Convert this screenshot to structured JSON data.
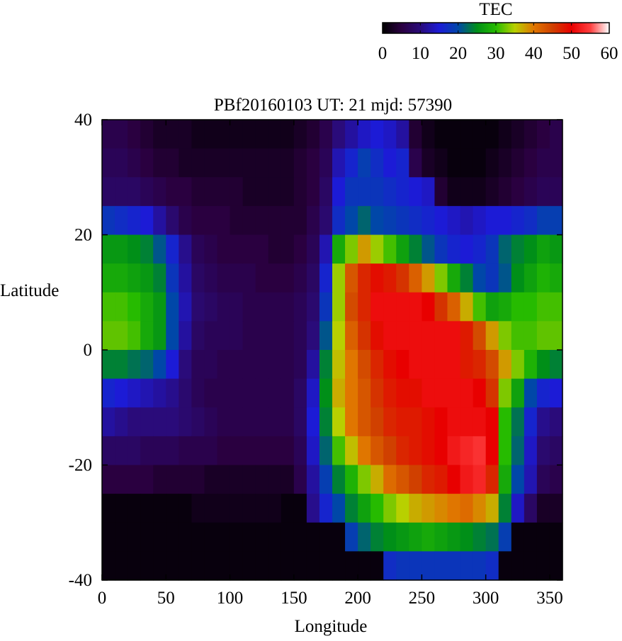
{
  "chart_data": {
    "type": "heatmap",
    "title": "PBf20160103  UT: 21  mjd: 57390",
    "xlabel": "Longitude",
    "ylabel": "Latitude",
    "xlim": [
      0,
      360
    ],
    "ylim": [
      -40,
      40
    ],
    "x_ticks": [
      "0",
      "50",
      "100",
      "150",
      "200",
      "250",
      "300",
      "350"
    ],
    "y_ticks": [
      "40",
      "20",
      "0",
      "-20",
      "-40"
    ],
    "grid": {
      "x_start": 0,
      "x_step": 10,
      "y_start": 40,
      "y_step": -5,
      "columns": 36,
      "rows": 16
    },
    "values": [
      [
        6,
        6,
        5,
        4,
        3,
        3,
        3,
        2,
        2,
        2,
        2,
        2,
        2,
        2,
        2,
        3,
        4,
        6,
        10,
        12,
        14,
        15,
        14,
        12,
        4,
        2,
        1,
        1,
        1,
        1,
        1,
        2,
        3,
        4,
        5,
        6
      ],
      [
        7,
        7,
        6,
        5,
        4,
        4,
        3,
        3,
        3,
        3,
        3,
        3,
        3,
        3,
        3,
        4,
        5,
        7,
        13,
        16,
        19,
        17,
        15,
        16,
        6,
        3,
        2,
        1,
        1,
        1,
        2,
        3,
        4,
        5,
        6,
        6
      ],
      [
        8,
        8,
        8,
        7,
        6,
        5,
        5,
        4,
        4,
        4,
        4,
        3,
        3,
        3,
        3,
        4,
        5,
        8,
        15,
        18,
        18,
        18,
        17,
        16,
        15,
        14,
        4,
        2,
        2,
        2,
        3,
        4,
        5,
        6,
        7,
        7
      ],
      [
        18,
        17,
        16,
        15,
        12,
        9,
        6,
        5,
        5,
        5,
        4,
        4,
        4,
        4,
        4,
        4,
        6,
        9,
        17,
        20,
        22,
        20,
        19,
        18,
        17,
        16,
        15,
        14,
        13,
        14,
        15,
        15,
        16,
        17,
        19,
        19
      ],
      [
        26,
        26,
        25,
        24,
        21,
        16,
        11,
        7,
        6,
        5,
        5,
        5,
        5,
        4,
        4,
        5,
        7,
        13,
        28,
        33,
        38,
        34,
        31,
        27,
        24,
        21,
        18,
        16,
        15,
        16,
        18,
        22,
        24,
        25,
        27,
        26
      ],
      [
        28,
        28,
        27,
        26,
        24,
        18,
        12,
        8,
        7,
        6,
        6,
        6,
        5,
        5,
        5,
        6,
        8,
        16,
        34,
        43,
        47,
        49,
        48,
        46,
        42,
        38,
        33,
        28,
        24,
        20,
        18,
        21,
        25,
        27,
        29,
        28
      ],
      [
        31,
        31,
        30,
        28,
        26,
        20,
        13,
        9,
        8,
        7,
        7,
        6,
        6,
        6,
        6,
        7,
        9,
        18,
        34,
        44,
        47,
        51,
        51,
        51,
        51,
        50,
        46,
        42,
        37,
        31,
        27,
        28,
        30,
        30,
        31,
        31
      ],
      [
        32,
        32,
        31,
        28,
        26,
        20,
        12,
        8,
        7,
        7,
        7,
        6,
        6,
        6,
        6,
        7,
        10,
        21,
        35,
        42,
        46,
        49,
        51,
        51,
        51,
        51,
        51,
        51,
        48,
        44,
        38,
        33,
        31,
        31,
        32,
        32
      ],
      [
        24,
        24,
        23,
        22,
        20,
        15,
        10,
        7,
        7,
        6,
        6,
        6,
        6,
        6,
        6,
        7,
        12,
        24,
        36,
        40,
        44,
        47,
        49,
        50,
        51,
        51,
        51,
        51,
        48,
        47,
        44,
        38,
        33,
        29,
        25,
        24
      ],
      [
        16,
        15,
        14,
        13,
        12,
        11,
        9,
        7,
        6,
        6,
        6,
        6,
        6,
        6,
        6,
        8,
        14,
        25,
        37,
        40,
        43,
        46,
        48,
        49,
        49,
        51,
        51,
        51,
        51,
        50,
        46,
        33,
        27,
        20,
        16,
        15
      ],
      [
        12,
        11,
        10,
        10,
        10,
        10,
        9,
        8,
        7,
        6,
        6,
        6,
        6,
        6,
        6,
        8,
        15,
        24,
        35,
        40,
        43,
        45,
        47,
        48,
        48,
        49,
        50,
        51,
        51,
        51,
        50,
        30,
        23,
        16,
        11,
        10
      ],
      [
        8,
        8,
        8,
        7,
        7,
        7,
        6,
        6,
        6,
        5,
        5,
        5,
        5,
        5,
        5,
        7,
        14,
        22,
        31,
        36,
        40,
        43,
        45,
        47,
        48,
        49,
        50,
        52,
        53,
        54,
        50,
        30,
        22,
        14,
        9,
        8
      ],
      [
        5,
        5,
        5,
        5,
        4,
        4,
        4,
        4,
        3,
        3,
        3,
        3,
        3,
        3,
        3,
        6,
        12,
        19,
        24,
        29,
        33,
        37,
        41,
        43,
        45,
        47,
        48,
        50,
        52,
        53,
        47,
        28,
        20,
        13,
        7,
        6
      ],
      [
        1,
        1,
        1,
        1,
        1,
        1,
        1,
        2,
        2,
        2,
        2,
        2,
        2,
        2,
        1,
        1,
        11,
        16,
        20,
        24,
        27,
        30,
        33,
        35,
        37,
        38,
        39,
        40,
        41,
        39,
        37,
        24,
        14,
        8,
        3,
        3
      ],
      [
        1,
        1,
        1,
        1,
        1,
        1,
        1,
        1,
        1,
        1,
        1,
        1,
        1,
        1,
        1,
        1,
        1,
        1,
        1,
        19,
        22,
        24,
        25,
        26,
        27,
        28,
        27,
        26,
        25,
        24,
        23,
        19,
        1,
        1,
        1,
        1
      ],
      [
        1,
        1,
        1,
        1,
        1,
        1,
        1,
        1,
        1,
        1,
        1,
        1,
        1,
        1,
        1,
        1,
        1,
        1,
        1,
        1,
        1,
        1,
        17,
        18,
        18,
        18,
        18,
        18,
        18,
        18,
        17,
        1,
        1,
        1,
        1,
        1
      ]
    ],
    "colorbar": {
      "label": "TEC",
      "range": [
        0,
        60
      ],
      "ticks": [
        "0",
        "10",
        "20",
        "30",
        "40",
        "50",
        "60"
      ],
      "placement": "top-right",
      "stops": [
        [
          0,
          "#000000"
        ],
        [
          5,
          "#2a0040"
        ],
        [
          10,
          "#2a0b7a"
        ],
        [
          15,
          "#1c1bd6"
        ],
        [
          20,
          "#0047a8"
        ],
        [
          25,
          "#008f18"
        ],
        [
          30,
          "#26bb00"
        ],
        [
          35,
          "#b8d000"
        ],
        [
          40,
          "#e07600"
        ],
        [
          45,
          "#d04000"
        ],
        [
          50,
          "#e80000"
        ],
        [
          55,
          "#ff3f3f"
        ],
        [
          60,
          "#ffffff"
        ]
      ]
    }
  }
}
